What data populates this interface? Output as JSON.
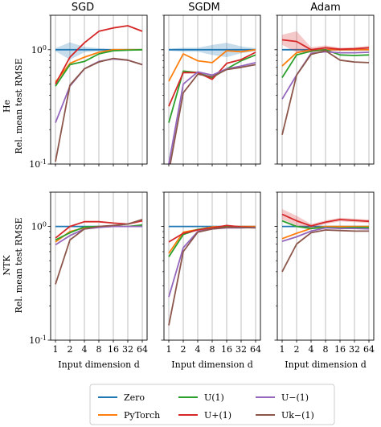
{
  "chart_data": {
    "type": "line",
    "x": [
      1,
      2,
      4,
      8,
      16,
      32,
      64
    ],
    "x_tick_labels": [
      "1",
      "2",
      "4",
      "8",
      "16",
      "32",
      "64"
    ],
    "xlabel": "Input dimension d",
    "ylabel": "Rel. mean test RMSE",
    "yscale": "log",
    "ylim": [
      0.1,
      2.0
    ],
    "y_tick_labels": [
      "10^0",
      "10^-1"
    ],
    "grid": "vertical",
    "columns": [
      "SGD",
      "SGDM",
      "Adam"
    ],
    "rows": [
      "He",
      "NTK"
    ],
    "colors": {
      "Zero": "#1f77b4",
      "PyTorch": "#ff7f0e",
      "U(1)": "#2ca02c",
      "U+(1)": "#d62728",
      "U-(1)": "#9467bd",
      "Uk-(1)": "#8c564b"
    },
    "legend": {
      "placement": "bottom",
      "entries": [
        {
          "key": "Zero",
          "label": "Zero"
        },
        {
          "key": "PyTorch",
          "label": "PyTorch"
        },
        {
          "key": "U(1)",
          "label": "U(1)"
        },
        {
          "key": "U+(1)",
          "label": "U+(1)"
        },
        {
          "key": "U-(1)",
          "label": "U−(1)"
        },
        {
          "key": "Uk-(1)",
          "label": "Uk−(1)"
        }
      ]
    },
    "panels": [
      {
        "row": "He",
        "col": "SGD",
        "series": [
          {
            "key": "Zero",
            "values": [
              1.0,
              1.0,
              1.0,
              1.0,
              1.0,
              1.0,
              1.0
            ],
            "band": [
              [
                0.97,
                1.03
              ],
              [
                0.82,
                1.16
              ],
              [
                0.95,
                1.06
              ],
              [
                0.97,
                1.03
              ],
              [
                0.99,
                1.01
              ],
              [
                0.99,
                1.01
              ],
              [
                0.99,
                1.01
              ]
            ]
          },
          {
            "key": "PyTorch",
            "values": [
              0.52,
              0.76,
              0.86,
              0.95,
              1.0,
              1.0,
              1.0
            ]
          },
          {
            "key": "U(1)",
            "values": [
              0.48,
              0.74,
              0.79,
              0.92,
              0.98,
              0.99,
              1.0
            ]
          },
          {
            "key": "U+(1)",
            "values": [
              0.5,
              0.86,
              1.15,
              1.45,
              1.55,
              1.62,
              1.45
            ]
          },
          {
            "key": "U-(1)",
            "values": [
              0.23,
              0.48,
              0.68,
              0.79,
              0.83,
              0.81,
              0.74
            ]
          },
          {
            "key": "Uk-(1)",
            "values": [
              0.105,
              0.49,
              0.68,
              0.78,
              0.84,
              0.81,
              0.74
            ]
          }
        ]
      },
      {
        "row": "He",
        "col": "SGDM",
        "series": [
          {
            "key": "Zero",
            "values": [
              1.0,
              1.0,
              1.0,
              1.0,
              1.0,
              1.0,
              1.0
            ],
            "band": [
              [
                0.98,
                1.02
              ],
              [
                0.96,
                1.04
              ],
              [
                0.96,
                1.04
              ],
              [
                0.9,
                1.1
              ],
              [
                0.86,
                1.15
              ],
              [
                0.93,
                1.07
              ],
              [
                0.97,
                1.03
              ]
            ]
          },
          {
            "key": "PyTorch",
            "values": [
              0.53,
              0.92,
              0.8,
              0.77,
              0.98,
              0.96,
              1.0
            ]
          },
          {
            "key": "U(1)",
            "values": [
              0.23,
              0.65,
              0.63,
              0.57,
              0.68,
              0.8,
              0.9
            ]
          },
          {
            "key": "U+(1)",
            "values": [
              0.32,
              0.63,
              0.63,
              0.55,
              0.76,
              0.82,
              0.95
            ]
          },
          {
            "key": "U-(1)",
            "values": [
              0.1,
              0.5,
              0.64,
              0.6,
              0.68,
              0.72,
              0.77
            ]
          },
          {
            "key": "Uk-(1)",
            "values": [
              0.085,
              0.42,
              0.61,
              0.58,
              0.67,
              0.7,
              0.74
            ]
          }
        ]
      },
      {
        "row": "He",
        "col": "Adam",
        "series": [
          {
            "key": "Zero",
            "values": [
              1.0,
              1.0,
              1.0,
              1.0,
              1.0,
              1.0,
              1.0
            ]
          },
          {
            "key": "PyTorch",
            "values": [
              0.72,
              0.94,
              1.0,
              1.0,
              1.0,
              1.0,
              1.0
            ]
          },
          {
            "key": "U(1)",
            "values": [
              0.57,
              0.9,
              0.97,
              1.0,
              0.9,
              0.89,
              0.9
            ]
          },
          {
            "key": "U+(1)",
            "values": [
              1.22,
              1.18,
              1.0,
              1.04,
              1.01,
              1.02,
              1.04
            ],
            "band": [
              [
                1.1,
                1.35
              ],
              [
                0.95,
                1.45
              ],
              [
                0.95,
                1.05
              ],
              [
                0.99,
                1.09
              ],
              [
                0.98,
                1.04
              ],
              [
                0.99,
                1.05
              ],
              [
                1.0,
                1.08
              ]
            ]
          },
          {
            "key": "U-(1)",
            "values": [
              0.37,
              0.6,
              0.93,
              0.96,
              0.94,
              0.94,
              0.95
            ]
          },
          {
            "key": "Uk-(1)",
            "values": [
              0.18,
              0.6,
              0.91,
              0.98,
              0.81,
              0.78,
              0.77
            ]
          }
        ]
      },
      {
        "row": "NTK",
        "col": "SGD",
        "series": [
          {
            "key": "Zero",
            "values": [
              1.0,
              1.0,
              1.0,
              1.0,
              1.0,
              1.0,
              1.0
            ]
          },
          {
            "key": "PyTorch",
            "values": [
              0.73,
              0.9,
              0.97,
              1.0,
              1.0,
              1.0,
              1.0
            ]
          },
          {
            "key": "U(1)",
            "values": [
              0.76,
              0.88,
              0.99,
              1.0,
              1.0,
              1.0,
              1.03
            ]
          },
          {
            "key": "U+(1)",
            "values": [
              0.79,
              1.0,
              1.1,
              1.1,
              1.07,
              1.05,
              1.12
            ]
          },
          {
            "key": "U-(1)",
            "values": [
              0.69,
              0.83,
              0.95,
              0.98,
              1.0,
              1.0,
              1.0
            ]
          },
          {
            "key": "Uk-(1)",
            "values": [
              0.31,
              0.76,
              0.95,
              1.0,
              1.02,
              1.05,
              1.15
            ]
          }
        ]
      },
      {
        "row": "NTK",
        "col": "SGDM",
        "series": [
          {
            "key": "Zero",
            "values": [
              1.0,
              1.0,
              1.0,
              1.0,
              1.0,
              1.0,
              1.0
            ]
          },
          {
            "key": "PyTorch",
            "values": [
              0.58,
              0.89,
              0.94,
              0.99,
              1.0,
              1.0,
              1.0
            ]
          },
          {
            "key": "U(1)",
            "values": [
              0.54,
              0.85,
              0.94,
              0.97,
              0.99,
              0.98,
              0.98
            ]
          },
          {
            "key": "U+(1)",
            "values": [
              0.73,
              0.87,
              0.93,
              0.97,
              1.02,
              0.99,
              0.98
            ]
          },
          {
            "key": "U-(1)",
            "values": [
              0.24,
              0.65,
              0.9,
              0.95,
              0.97,
              0.97,
              0.98
            ]
          },
          {
            "key": "Uk-(1)",
            "values": [
              0.135,
              0.6,
              0.89,
              0.95,
              0.98,
              0.98,
              0.97
            ]
          }
        ]
      },
      {
        "row": "NTK",
        "col": "Adam",
        "series": [
          {
            "key": "Zero",
            "values": [
              1.0,
              1.0,
              1.0,
              1.0,
              1.0,
              1.0,
              1.0
            ]
          },
          {
            "key": "PyTorch",
            "values": [
              0.78,
              0.87,
              0.96,
              1.0,
              1.0,
              1.0,
              1.0
            ]
          },
          {
            "key": "U(1)",
            "values": [
              1.12,
              1.0,
              0.96,
              0.98,
              0.97,
              0.98,
              0.98
            ]
          },
          {
            "key": "U+(1)",
            "values": [
              1.28,
              1.12,
              1.01,
              1.09,
              1.15,
              1.13,
              1.11
            ],
            "band": [
              [
                1.15,
                1.42
              ],
              [
                1.02,
                1.24
              ],
              [
                0.97,
                1.05
              ],
              [
                1.05,
                1.13
              ],
              [
                1.11,
                1.19
              ],
              [
                1.09,
                1.17
              ],
              [
                1.07,
                1.15
              ]
            ]
          },
          {
            "key": "U-(1)",
            "values": [
              0.74,
              0.81,
              0.91,
              0.97,
              0.96,
              0.96,
              0.95
            ]
          },
          {
            "key": "Uk-(1)",
            "values": [
              0.4,
              0.7,
              0.88,
              0.93,
              0.92,
              0.91,
              0.91
            ]
          }
        ]
      }
    ]
  }
}
